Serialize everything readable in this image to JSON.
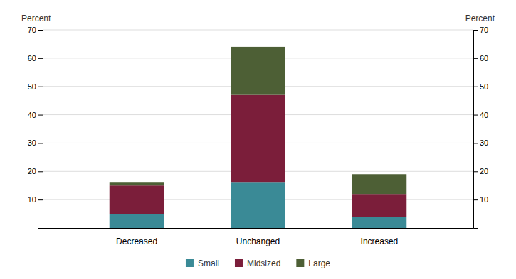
{
  "chart_data": {
    "type": "bar",
    "stacked": true,
    "categories": [
      "Decreased",
      "Unchanged",
      "Increased"
    ],
    "series": [
      {
        "name": "Small",
        "color": "#3a8a96",
        "values": [
          5,
          16,
          4
        ]
      },
      {
        "name": "Midsized",
        "color": "#7b1e3a",
        "values": [
          10,
          31,
          8
        ]
      },
      {
        "name": "Large",
        "color": "#4d5f35",
        "values": [
          1,
          17,
          7
        ]
      }
    ],
    "ylabel": "Percent",
    "y2label": "Percent",
    "ylim": [
      0,
      70
    ],
    "yticks": [
      10,
      20,
      30,
      40,
      50,
      60,
      70
    ],
    "y2lim": [
      0,
      70
    ],
    "y2ticks": [
      10,
      20,
      30,
      40,
      50,
      60,
      70
    ],
    "grid": true,
    "legend": "bottom"
  }
}
